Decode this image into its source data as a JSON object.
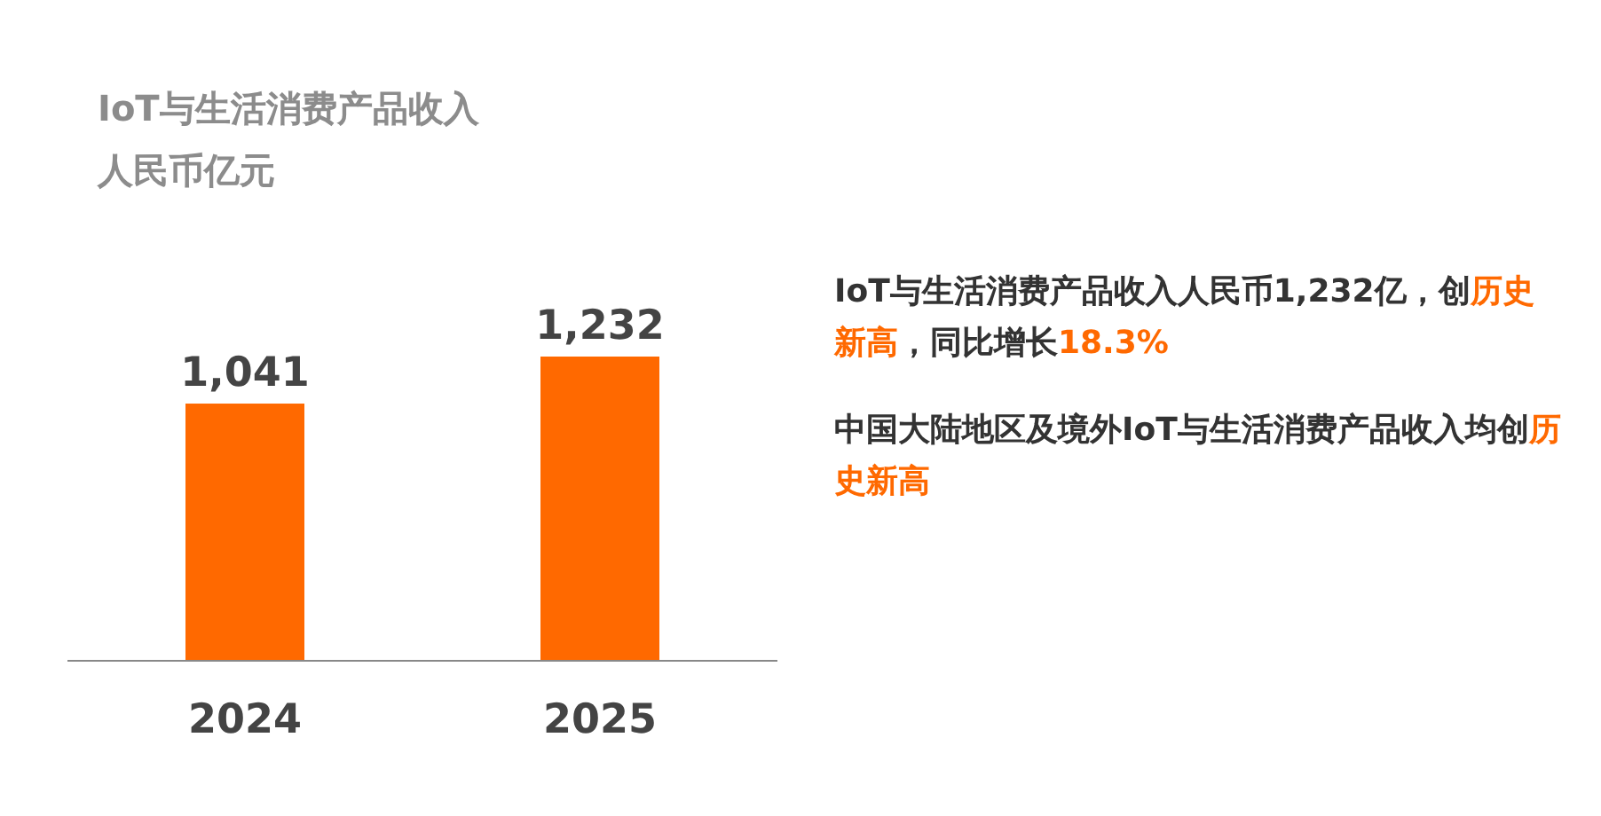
{
  "chart_data": {
    "type": "bar",
    "title": "IoT与生活消费产品收入",
    "subtitle": "人民币亿元",
    "categories": [
      "2024",
      "2025"
    ],
    "values": [
      1041,
      1232
    ],
    "value_labels": [
      "1,041",
      "1,232"
    ],
    "color": "#ff6900",
    "annotations": [
      "IoT与生活消费产品收入人民币1,232亿，创**历史新高**，同比增长**18.3%**",
      "中国大陆地区及境外IoT与生活消费产品收入均创**历史新高**"
    ]
  }
}
